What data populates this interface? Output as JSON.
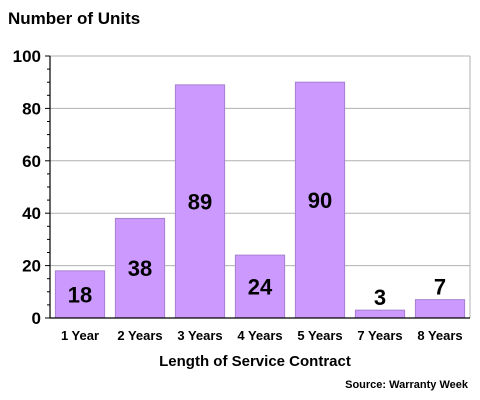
{
  "chart_data": {
    "type": "bar",
    "ylabel": "Number of Units",
    "xlabel": "Length of Service Contract",
    "source": "Source: Warranty Week",
    "categories": [
      "1 Year",
      "2 Years",
      "3 Years",
      "4 Years",
      "5 Years",
      "7 Years",
      "8 Years"
    ],
    "values": [
      18,
      38,
      89,
      24,
      90,
      3,
      7
    ],
    "data_labels": [
      "18",
      "38",
      "89",
      "24",
      "90",
      "3",
      "7"
    ],
    "ylim": [
      0,
      100
    ],
    "yticks": [
      "0",
      "20",
      "40",
      "60",
      "80",
      "100"
    ],
    "grid": true,
    "bar_color": "#cc99ff",
    "bar_edge_color": "#a680d0"
  }
}
